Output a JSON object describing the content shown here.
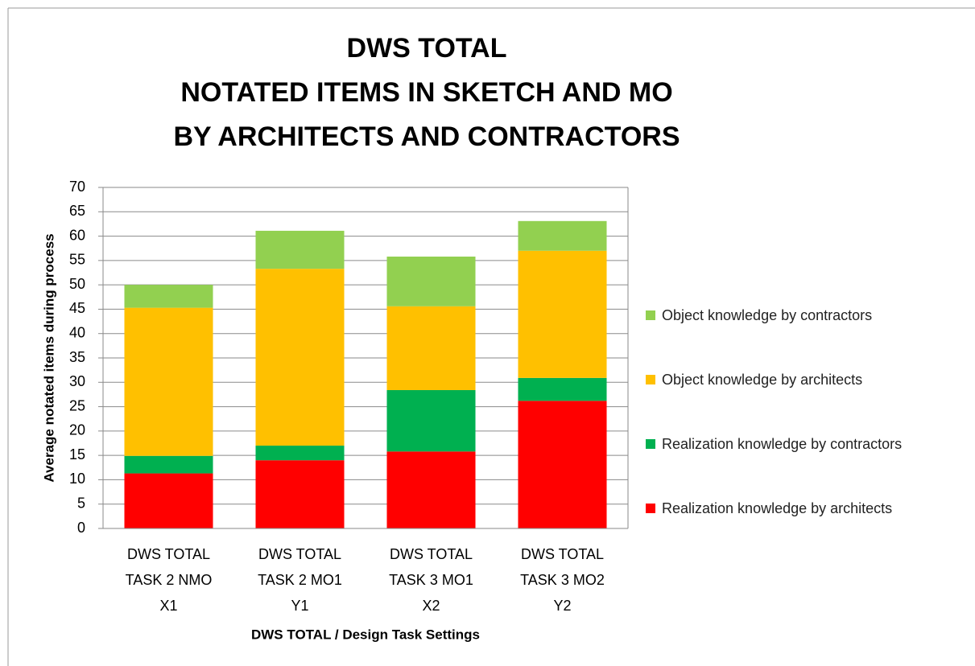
{
  "chart_data": {
    "type": "stacked-bar",
    "title": [
      "DWS TOTAL",
      "NOTATED ITEMS IN SKETCH AND MO",
      "BY ARCHITECTS AND CONTRACTORS"
    ],
    "ylabel": "Average notated items during process",
    "xlabel": "DWS TOTAL / Design Task Settings",
    "categories": [
      [
        "DWS TOTAL",
        "TASK 2  NMO",
        "X1"
      ],
      [
        "DWS TOTAL",
        "TASK 2  MO1",
        "Y1"
      ],
      [
        "DWS TOTAL",
        "TASK 3  MO1",
        "X2"
      ],
      [
        "DWS TOTAL",
        "TASK 3  MO2",
        "Y2"
      ]
    ],
    "series": [
      {
        "name": "Realization knowledge by architects",
        "color": "#ff0000",
        "values": [
          11.3,
          14.0,
          15.8,
          26.2
        ]
      },
      {
        "name": "Realization knowledge by contractors",
        "color": "#00b050",
        "values": [
          3.6,
          3.0,
          12.6,
          4.7
        ]
      },
      {
        "name": "Object knowledge by architects",
        "color": "#ffc000",
        "values": [
          30.4,
          36.3,
          17.2,
          26.1
        ]
      },
      {
        "name": "Object knowledge by contractors",
        "color": "#92d050",
        "values": [
          4.7,
          7.8,
          10.2,
          6.1
        ]
      }
    ],
    "ylim": [
      0,
      70
    ],
    "yticks": [
      0,
      5,
      10,
      15,
      20,
      25,
      30,
      35,
      40,
      45,
      50,
      55,
      60,
      65,
      70
    ],
    "grid": true,
    "legend": "right"
  }
}
